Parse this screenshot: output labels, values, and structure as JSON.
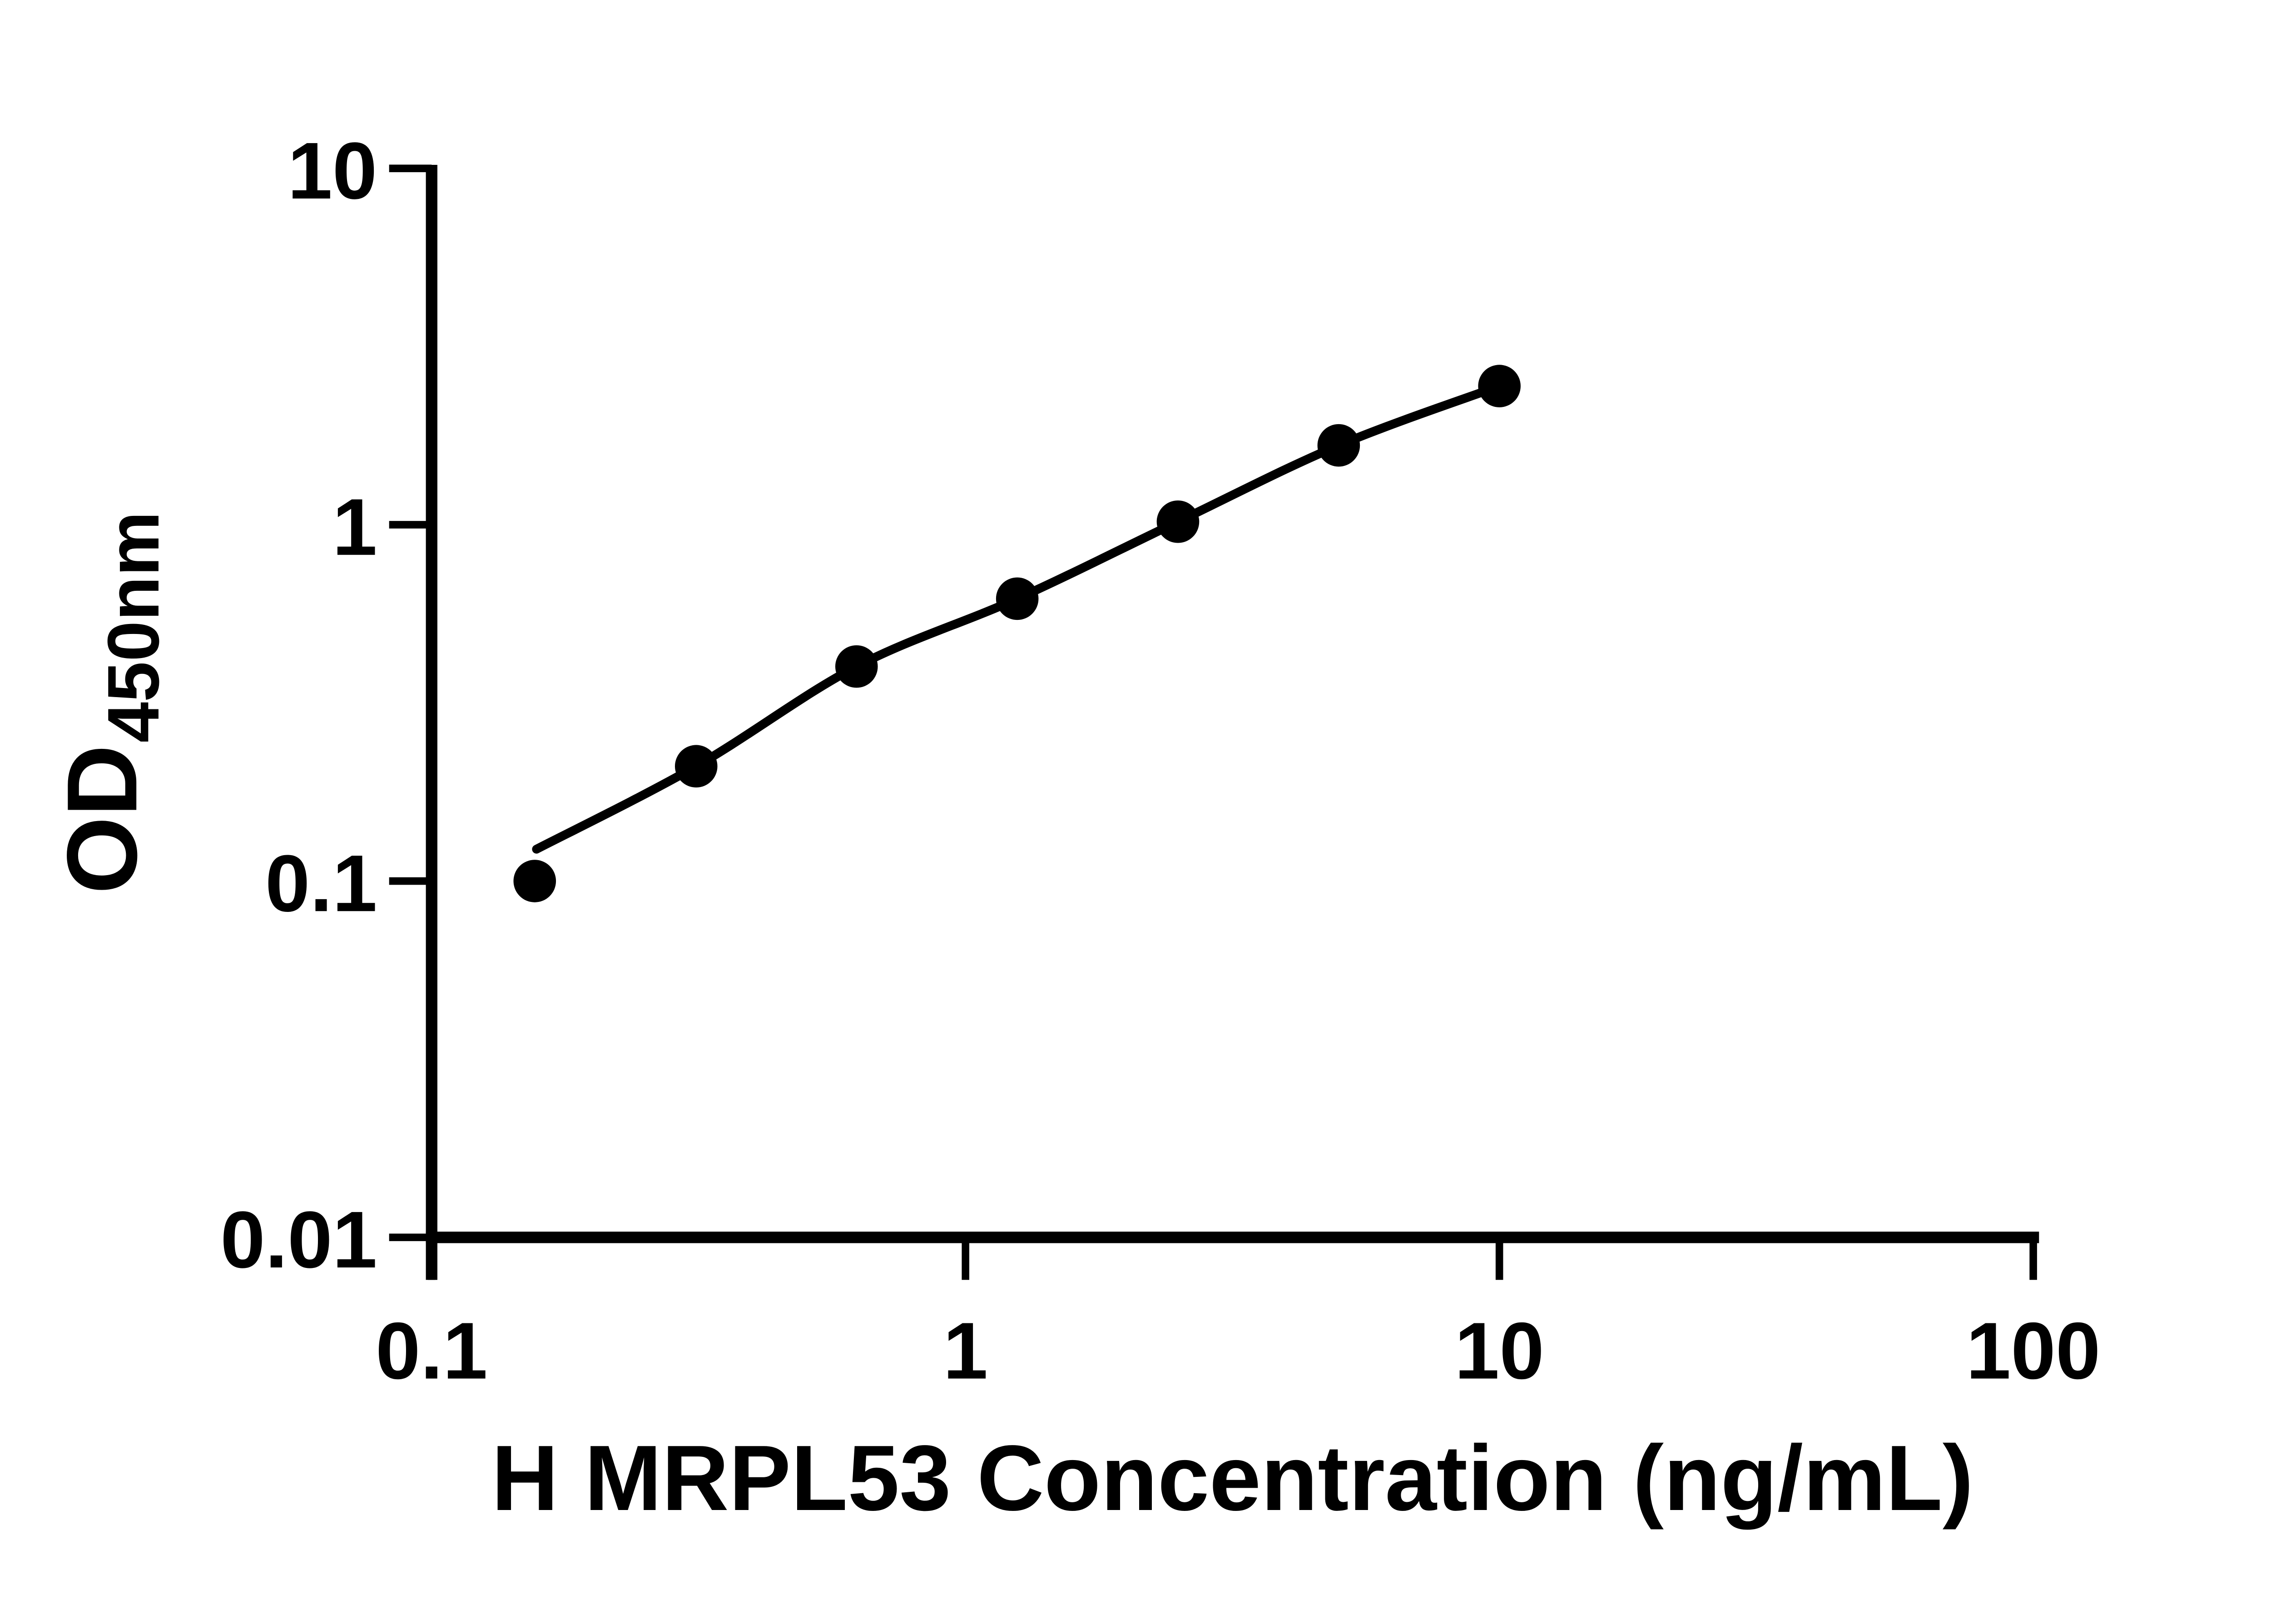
{
  "colors": {
    "ink": "#000000",
    "background": "#ffffff"
  },
  "chart_data": {
    "type": "scatter",
    "subtype": "standard-curve-with-fit-line",
    "title": "",
    "xlabel": "H MRPL53 Concentration (ng/mL)",
    "ylabel": "OD450nm",
    "ylabel_main": "OD",
    "ylabel_sub": "450nm",
    "x_scale": "log",
    "y_scale": "log",
    "xlim": [
      0.1,
      100
    ],
    "ylim": [
      0.01,
      10
    ],
    "x_ticks": {
      "values": [
        0.1,
        1,
        10,
        100
      ],
      "labels": [
        "0.1",
        "1",
        "10",
        "100"
      ]
    },
    "y_ticks": {
      "values": [
        10,
        1,
        0.1,
        0.01
      ],
      "labels": [
        "10",
        "1",
        "0.1",
        "0.01"
      ]
    },
    "grid": false,
    "legend": "none",
    "series": [
      {
        "marker": "filled-circle",
        "color": "#000000",
        "x": [
          0.156,
          0.313,
          0.625,
          1.25,
          2.5,
          5,
          10
        ],
        "y": [
          0.1,
          0.21,
          0.4,
          0.62,
          1.02,
          1.67,
          2.45
        ]
      }
    ]
  }
}
